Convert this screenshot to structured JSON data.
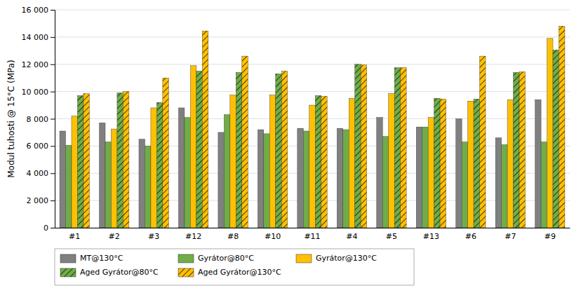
{
  "chart_data": {
    "type": "bar",
    "y_label": "Modul tuhosti @ 15°C (MPa)",
    "categories": [
      "#1",
      "#2",
      "#3",
      "#12",
      "#8",
      "#10",
      "#11",
      "#4",
      "#5",
      "#13",
      "#6",
      "#7",
      "#9"
    ],
    "series": [
      {
        "name": "MT@130°C",
        "color": "#808080",
        "values": [
          7100,
          7700,
          6500,
          8800,
          7000,
          7200,
          7300,
          7300,
          8100,
          7400,
          8000,
          6600,
          9400
        ]
      },
      {
        "name": "Gyrátor@80°C",
        "color": "#70ad47",
        "values": [
          6050,
          6300,
          6000,
          8100,
          8300,
          6900,
          7100,
          7200,
          6700,
          7400,
          6300,
          6100,
          6300
        ]
      },
      {
        "name": "Gyrátor@130°C",
        "color": "#ffc000",
        "values": [
          8200,
          7250,
          8800,
          11900,
          9750,
          9750,
          9000,
          9500,
          9850,
          8100,
          9300,
          9400,
          13900
        ]
      },
      {
        "name": "Aged Gyrátor@80°C",
        "color": "#70ad47",
        "values": [
          9700,
          9900,
          9200,
          11500,
          11400,
          11300,
          9700,
          12000,
          11750,
          9500,
          9450,
          11400,
          13050
        ]
      },
      {
        "name": "Aged Gyrátor@130°C",
        "color": "#ffc000",
        "values": [
          9850,
          10000,
          11000,
          14450,
          12600,
          11500,
          9650,
          11950,
          11750,
          9450,
          12600,
          11450,
          14800
        ]
      }
    ],
    "ylim": [
      0,
      16000
    ],
    "yticks": [
      0,
      {
        "value": 2000,
        "label": "2 000"
      },
      {
        "value": 4000,
        "label": "4 000"
      },
      {
        "value": 6000,
        "label": "6 000"
      },
      {
        "value": 8000,
        "label": "8 000"
      },
      {
        "value": 10000,
        "label": "10 000"
      },
      {
        "value": 12000,
        "label": "12 000"
      },
      {
        "value": 14000,
        "label": "14 000"
      },
      {
        "value": 16000,
        "label": "16 000"
      }
    ],
    "grid": true,
    "legend": "bottom"
  }
}
